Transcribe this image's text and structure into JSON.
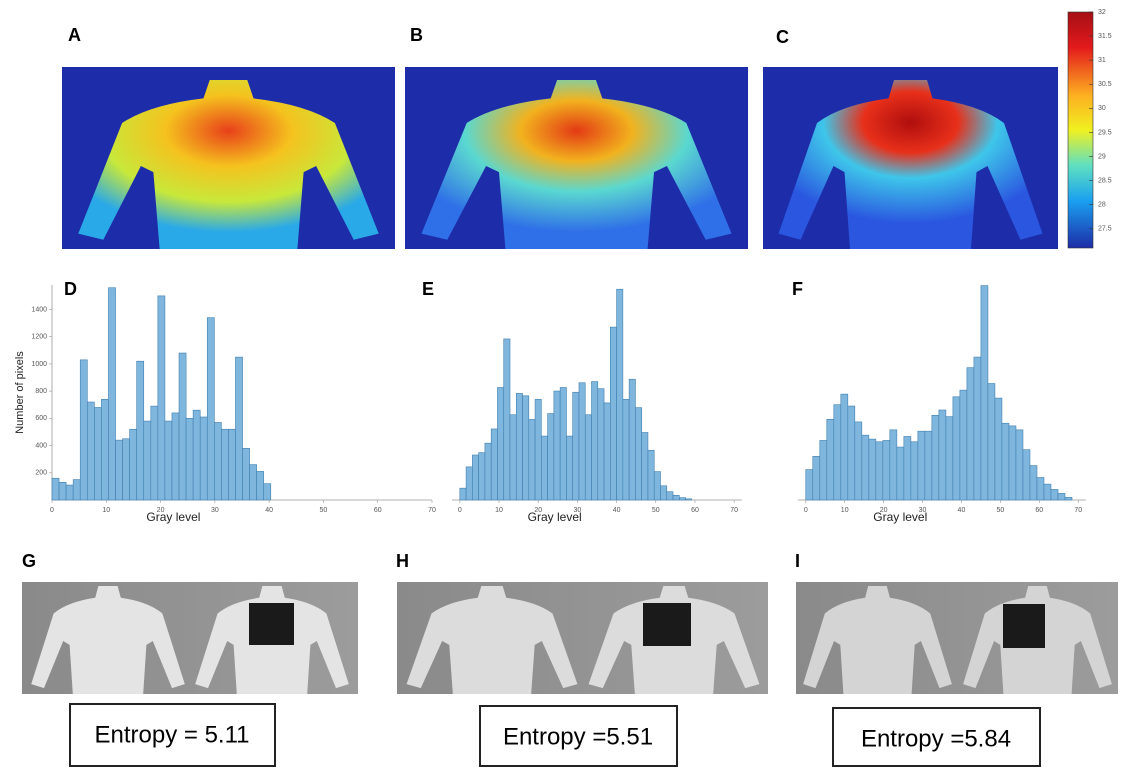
{
  "panel_labels": [
    "A",
    "B",
    "C",
    "G",
    "H",
    "I"
  ],
  "colorbar": {
    "lim": [
      27.1,
      32
    ],
    "ticks": [
      32,
      31.5,
      31,
      30.5,
      30,
      29.5,
      29,
      28.5,
      28,
      27.5
    ]
  },
  "entropy": [
    "Entropy = 5.11",
    "Entropy =5.51",
    "Entropy =5.84"
  ],
  "chart_data": [
    {
      "type": "histogram",
      "title": "D",
      "x_label": "Gray level",
      "y_label": "Number of pixels",
      "color": "#7fb6dd",
      "bins": [
        0,
        1.3,
        2.6,
        3.9,
        5.2,
        6.5,
        7.8,
        9.1,
        10.4,
        11.7,
        13,
        14.3,
        15.6,
        16.9,
        18.2,
        19.5,
        20.8,
        22.1,
        23.4,
        24.7,
        26,
        27.3,
        28.6,
        29.9,
        31.2,
        32.5,
        33.8,
        35.1,
        36.4,
        37.7,
        39,
        40.3
      ],
      "values": [
        160,
        130,
        110,
        150,
        1030,
        720,
        680,
        740,
        1560,
        440,
        450,
        520,
        1020,
        580,
        690,
        1500,
        580,
        640,
        1080,
        600,
        660,
        610,
        1340,
        570,
        520,
        520,
        1050,
        380,
        260,
        210,
        120
      ],
      "xlim": [
        0,
        70
      ],
      "xticks": [
        0,
        10,
        20,
        30,
        40,
        50,
        60,
        70
      ],
      "ylim": [
        0,
        1580
      ],
      "yticks": [
        200,
        400,
        600,
        800,
        1000,
        1200,
        1400
      ]
    },
    {
      "type": "histogram",
      "title": "E",
      "x_label": "Gray level",
      "color": "#7fb6dd",
      "bins": [
        0,
        1.6,
        3.2,
        4.8,
        6.4,
        8,
        9.6,
        11.2,
        12.8,
        14.4,
        16,
        17.6,
        19.2,
        20.8,
        22.4,
        24,
        25.6,
        27.2,
        28.8,
        30.4,
        32,
        33.6,
        35.2,
        36.8,
        38.4,
        40,
        41.6,
        43.2,
        44.8,
        46.4,
        48,
        49.6,
        51.2,
        52.8,
        54.4,
        56,
        57.6,
        59.2
      ],
      "values": [
        100,
        280,
        380,
        400,
        480,
        600,
        950,
        1360,
        720,
        900,
        880,
        680,
        850,
        540,
        730,
        920,
        950,
        540,
        910,
        990,
        720,
        1000,
        940,
        820,
        1460,
        1780,
        850,
        1020,
        780,
        570,
        420,
        240,
        120,
        70,
        40,
        20,
        10
      ],
      "xlim": [
        -2,
        72
      ],
      "xticks": [
        0,
        10,
        20,
        30,
        40,
        50,
        60,
        70
      ],
      "ylim": [
        0,
        1900
      ]
    },
    {
      "type": "histogram",
      "title": "F",
      "x_label": "Gray level",
      "color": "#7fb6dd",
      "bins": [
        0,
        1.8,
        3.6,
        5.4,
        7.2,
        9,
        10.8,
        12.6,
        14.4,
        16.2,
        18,
        19.8,
        21.6,
        23.4,
        25.2,
        27,
        28.8,
        30.6,
        32.4,
        34.2,
        36,
        37.8,
        39.6,
        41.4,
        43.2,
        45,
        46.8,
        48.6,
        50.4,
        52.2,
        54,
        55.8,
        57.6,
        59.4,
        61.2,
        63,
        64.8,
        66.6,
        68.4
      ],
      "values": [
        230,
        330,
        450,
        610,
        720,
        800,
        710,
        590,
        490,
        460,
        440,
        450,
        530,
        400,
        480,
        440,
        520,
        520,
        640,
        680,
        630,
        780,
        830,
        1000,
        1080,
        1620,
        880,
        770,
        580,
        560,
        530,
        380,
        260,
        170,
        120,
        80,
        50,
        20
      ],
      "xlim": [
        -2,
        72
      ],
      "xticks": [
        0,
        10,
        20,
        30,
        40,
        50,
        60,
        70
      ],
      "ylim": [
        0,
        1700
      ]
    }
  ]
}
